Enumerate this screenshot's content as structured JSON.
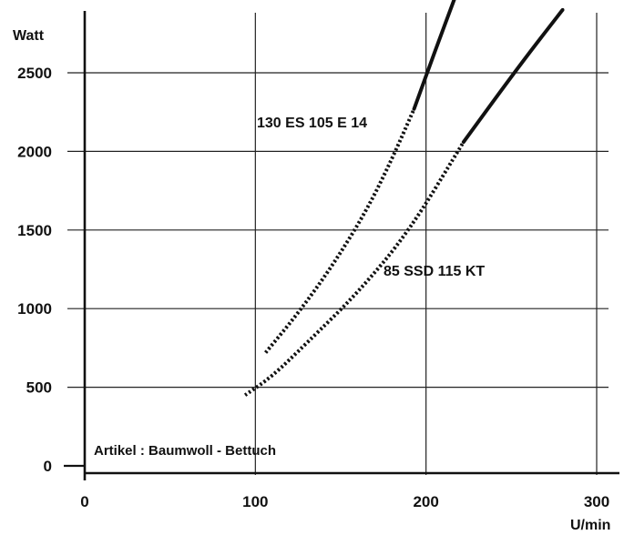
{
  "chart_data": {
    "type": "line",
    "title": "",
    "xlabel": "U/min",
    "ylabel": "Watt",
    "xlim": [
      0,
      300
    ],
    "ylim": [
      0,
      2500
    ],
    "x_ticks": [
      "0",
      "100",
      "200",
      "300"
    ],
    "y_ticks": [
      "0",
      "500",
      "1000",
      "1500",
      "2000",
      "2500"
    ],
    "grid": true,
    "note": "Artikel : Baumwoll - Bettuch",
    "series": [
      {
        "name": "130 ES 105 E 14",
        "dotted_points": [
          [
            106,
            720
          ],
          [
            125,
            970
          ],
          [
            145,
            1270
          ],
          [
            165,
            1620
          ],
          [
            180,
            1950
          ],
          [
            193,
            2270
          ]
        ],
        "solid_points": [
          [
            193,
            2270
          ],
          [
            205,
            2630
          ],
          [
            217,
            2980
          ]
        ],
        "color": "#111111"
      },
      {
        "name": "85 SSD 115 KT",
        "dotted_points": [
          [
            94,
            450
          ],
          [
            110,
            570
          ],
          [
            130,
            780
          ],
          [
            160,
            1100
          ],
          [
            190,
            1490
          ],
          [
            222,
            2060
          ]
        ],
        "solid_points": [
          [
            222,
            2060
          ],
          [
            255,
            2550
          ],
          [
            280,
            2900
          ]
        ],
        "color": "#111111"
      }
    ]
  }
}
